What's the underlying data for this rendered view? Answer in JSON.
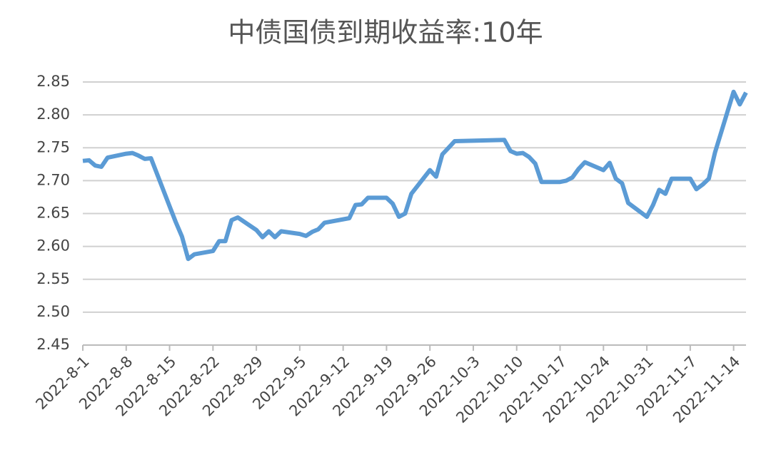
{
  "chart_data": {
    "type": "line",
    "title": "中债国债到期收益率:10年",
    "x": [
      "2022-8-1",
      "2022-8-2",
      "2022-8-3",
      "2022-8-4",
      "2022-8-5",
      "2022-8-8",
      "2022-8-9",
      "2022-8-10",
      "2022-8-11",
      "2022-8-12",
      "2022-8-15",
      "2022-8-16",
      "2022-8-17",
      "2022-8-18",
      "2022-8-19",
      "2022-8-22",
      "2022-8-23",
      "2022-8-24",
      "2022-8-25",
      "2022-8-26",
      "2022-8-29",
      "2022-8-30",
      "2022-8-31",
      "2022-9-1",
      "2022-9-2",
      "2022-9-5",
      "2022-9-6",
      "2022-9-7",
      "2022-9-8",
      "2022-9-9",
      "2022-9-13",
      "2022-9-14",
      "2022-9-15",
      "2022-9-16",
      "2022-9-19",
      "2022-9-20",
      "2022-9-21",
      "2022-9-22",
      "2022-9-23",
      "2022-9-26",
      "2022-9-27",
      "2022-9-28",
      "2022-9-29",
      "2022-9-30",
      "2022-10-8",
      "2022-10-9",
      "2022-10-10",
      "2022-10-11",
      "2022-10-12",
      "2022-10-13",
      "2022-10-14",
      "2022-10-17",
      "2022-10-18",
      "2022-10-19",
      "2022-10-20",
      "2022-10-21",
      "2022-10-24",
      "2022-10-25",
      "2022-10-26",
      "2022-10-27",
      "2022-10-28",
      "2022-10-31",
      "2022-11-1",
      "2022-11-2",
      "2022-11-3",
      "2022-11-4",
      "2022-11-7",
      "2022-11-8",
      "2022-11-9",
      "2022-11-10",
      "2022-11-11",
      "2022-11-14",
      "2022-11-15",
      "2022-11-16"
    ],
    "series": [
      {
        "color": "#5b9bd5",
        "values": [
          2.73,
          2.731,
          2.723,
          2.721,
          2.735,
          2.741,
          2.742,
          2.738,
          2.733,
          2.734,
          2.661,
          2.637,
          2.615,
          2.581,
          2.588,
          2.593,
          2.608,
          2.608,
          2.64,
          2.644,
          2.625,
          2.614,
          2.623,
          2.614,
          2.623,
          2.619,
          2.616,
          2.622,
          2.626,
          2.636,
          2.643,
          2.663,
          2.664,
          2.674,
          2.674,
          2.665,
          2.645,
          2.65,
          2.68,
          2.716,
          2.706,
          2.74,
          2.75,
          2.76,
          2.762,
          2.745,
          2.741,
          2.742,
          2.736,
          2.726,
          2.698,
          2.698,
          2.7,
          2.705,
          2.718,
          2.728,
          2.716,
          2.727,
          2.703,
          2.696,
          2.666,
          2.645,
          2.663,
          2.686,
          2.68,
          2.703,
          2.703,
          2.687,
          2.694,
          2.703,
          2.743,
          2.835,
          2.816,
          2.834
        ]
      }
    ],
    "xlim": [
      "2022-8-1",
      "2022-11-16"
    ],
    "xticks": [
      "2022-8-1",
      "2022-8-8",
      "2022-8-15",
      "2022-8-22",
      "2022-8-29",
      "2022-9-5",
      "2022-9-12",
      "2022-9-19",
      "2022-9-26",
      "2022-10-3",
      "2022-10-10",
      "2022-10-17",
      "2022-10-24",
      "2022-10-31",
      "2022-11-7",
      "2022-11-14"
    ],
    "ylim": [
      2.45,
      2.85
    ],
    "yticks": [
      2.45,
      {
        "value": 2.5,
        "label": "2.50"
      },
      2.55,
      {
        "value": 2.6,
        "label": "2.60"
      },
      2.65,
      {
        "value": 2.7,
        "label": "2.70"
      },
      2.75,
      {
        "value": 2.8,
        "label": "2.80"
      },
      2.85
    ],
    "grid": true
  }
}
